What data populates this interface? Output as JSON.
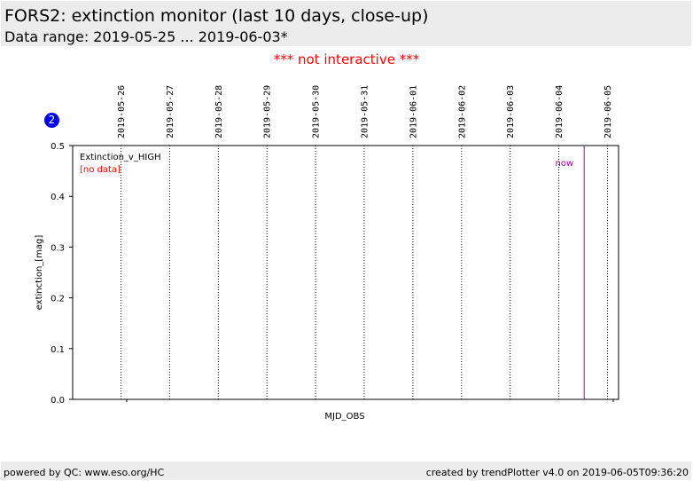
{
  "header": {
    "title": "FORS2: extinction monitor (last 10 days, close-up)",
    "subtitle": "Data range: 2019-05-25 ... 2019-06-03*"
  },
  "notice": "*** not interactive ***",
  "badge": "2",
  "footer": {
    "left": "powered by QC: www.eso.org/HC",
    "right": "created by trendPlotter v4.0 on 2019-06-05T09:36:20"
  },
  "colors": {
    "notice": "#ff0000",
    "badge": "#0000ee",
    "no_data": "#ff0000",
    "now_line": "#990099"
  },
  "chart_data": {
    "type": "line",
    "xlabel": "MJD_OBS",
    "ylabel": "extinction_[mag]",
    "ylim": [
      0.0,
      0.5
    ],
    "yticks": [
      "0.0",
      "0.1",
      "0.2",
      "0.3",
      "0.4",
      "0.5"
    ],
    "date_ticks": [
      "2019-05-26",
      "2019-05-27",
      "2019-05-28",
      "2019-05-29",
      "2019-05-30",
      "2019-05-31",
      "2019-06-01",
      "2019-06-02",
      "2019-06-03",
      "2019-06-04",
      "2019-06-05"
    ],
    "series": [
      {
        "name": "Extinction_v_HIGH",
        "values": []
      }
    ],
    "series_note": "[no data]",
    "now_marker": {
      "label": "now",
      "date": "2019-06-04T12:30"
    },
    "grid": "vertical dotted at date ticks"
  }
}
